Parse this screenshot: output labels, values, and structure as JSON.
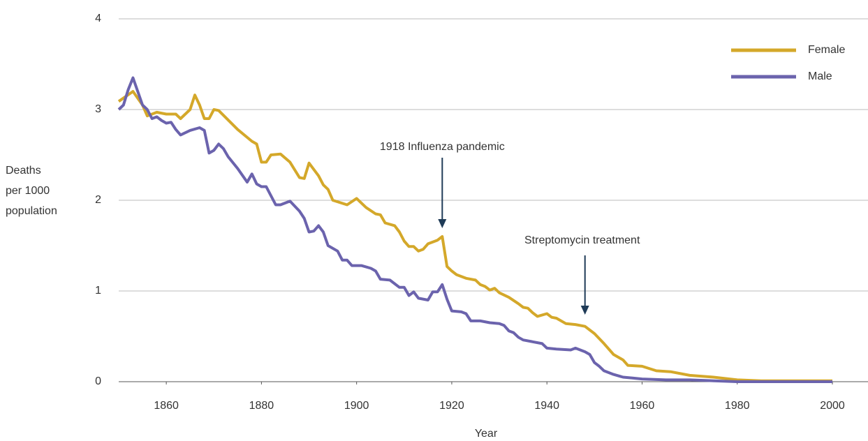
{
  "chart_data": {
    "type": "line",
    "x_label": "Year",
    "y_label": [
      "Deaths",
      "per 1000",
      "population"
    ],
    "annotations": [
      "1918 Influenza pandemic",
      "Streptomycin treatment"
    ],
    "xlim": [
      1850,
      2000
    ],
    "xticks": [
      1860,
      1880,
      1900,
      1920,
      1940,
      1960,
      1980,
      2000
    ],
    "ylim": [
      0,
      4
    ],
    "yticks": [
      0,
      1,
      2,
      3,
      4
    ],
    "grid": true,
    "legend": "upper right",
    "series": [
      {
        "name": "Female",
        "color": "#d4a82a",
        "x": [
          1850,
          1853,
          1855,
          1856,
          1858,
          1860,
          1862,
          1863,
          1865,
          1866,
          1867,
          1868,
          1869,
          1870,
          1871,
          1875,
          1878,
          1879,
          1880,
          1881,
          1882,
          1884,
          1886,
          1888,
          1889,
          1890,
          1892,
          1893,
          1894,
          1895,
          1898,
          1900,
          1902,
          1904,
          1905,
          1906,
          1908,
          1909,
          1910,
          1911,
          1912,
          1913,
          1914,
          1915,
          1917,
          1918,
          1919,
          1920,
          1921,
          1923,
          1925,
          1926,
          1927,
          1928,
          1929,
          1930,
          1932,
          1934,
          1935,
          1936,
          1937,
          1938,
          1940,
          1941,
          1942,
          1944,
          1946,
          1948,
          1950,
          1952,
          1954,
          1956,
          1957,
          1960,
          1963,
          1966,
          1970,
          1975,
          1980,
          1985,
          1990,
          1995,
          2000
        ],
        "values": [
          3.09,
          3.2,
          3.05,
          2.93,
          2.97,
          2.95,
          2.95,
          2.9,
          3.0,
          3.16,
          3.05,
          2.9,
          2.9,
          3.0,
          2.99,
          2.78,
          2.65,
          2.62,
          2.42,
          2.42,
          2.5,
          2.51,
          2.42,
          2.25,
          2.24,
          2.41,
          2.27,
          2.17,
          2.12,
          2.0,
          1.95,
          2.02,
          1.92,
          1.85,
          1.84,
          1.75,
          1.72,
          1.65,
          1.55,
          1.49,
          1.49,
          1.44,
          1.46,
          1.52,
          1.56,
          1.6,
          1.27,
          1.22,
          1.18,
          1.14,
          1.12,
          1.07,
          1.05,
          1.01,
          1.03,
          0.98,
          0.93,
          0.86,
          0.82,
          0.81,
          0.76,
          0.72,
          0.75,
          0.71,
          0.7,
          0.64,
          0.63,
          0.61,
          0.53,
          0.42,
          0.3,
          0.24,
          0.18,
          0.17,
          0.12,
          0.11,
          0.07,
          0.05,
          0.02,
          0.01,
          0.01,
          0.01,
          0.01
        ]
      },
      {
        "name": "Male",
        "color": "#6b63ad",
        "x": [
          1850,
          1851,
          1852,
          1853,
          1854,
          1855,
          1856,
          1857,
          1858,
          1859,
          1860,
          1861,
          1862,
          1863,
          1865,
          1867,
          1868,
          1869,
          1870,
          1871,
          1872,
          1873,
          1875,
          1877,
          1878,
          1879,
          1880,
          1881,
          1883,
          1884,
          1886,
          1888,
          1889,
          1890,
          1891,
          1892,
          1893,
          1894,
          1896,
          1897,
          1898,
          1899,
          1901,
          1903,
          1904,
          1905,
          1907,
          1909,
          1910,
          1911,
          1912,
          1913,
          1915,
          1916,
          1917,
          1918,
          1919,
          1920,
          1922,
          1923,
          1924,
          1926,
          1928,
          1930,
          1931,
          1932,
          1933,
          1934,
          1935,
          1937,
          1939,
          1940,
          1942,
          1945,
          1946,
          1948,
          1949,
          1950,
          1951,
          1952,
          1954,
          1956,
          1958,
          1960,
          1965,
          1970,
          1975,
          1980,
          1990,
          2000
        ],
        "values": [
          3.0,
          3.05,
          3.22,
          3.35,
          3.2,
          3.05,
          3.0,
          2.9,
          2.92,
          2.88,
          2.85,
          2.86,
          2.78,
          2.72,
          2.77,
          2.8,
          2.77,
          2.52,
          2.55,
          2.62,
          2.57,
          2.48,
          2.35,
          2.2,
          2.29,
          2.18,
          2.15,
          2.15,
          1.95,
          1.95,
          1.99,
          1.88,
          1.8,
          1.65,
          1.66,
          1.72,
          1.65,
          1.5,
          1.44,
          1.34,
          1.34,
          1.28,
          1.28,
          1.25,
          1.22,
          1.13,
          1.12,
          1.04,
          1.04,
          0.95,
          0.99,
          0.92,
          0.9,
          0.99,
          0.99,
          1.07,
          0.91,
          0.78,
          0.77,
          0.75,
          0.67,
          0.67,
          0.65,
          0.64,
          0.62,
          0.56,
          0.54,
          0.49,
          0.46,
          0.44,
          0.42,
          0.37,
          0.36,
          0.35,
          0.37,
          0.33,
          0.3,
          0.21,
          0.17,
          0.12,
          0.08,
          0.05,
          0.04,
          0.03,
          0.02,
          0.02,
          0.01,
          0,
          0,
          0
        ]
      }
    ]
  }
}
